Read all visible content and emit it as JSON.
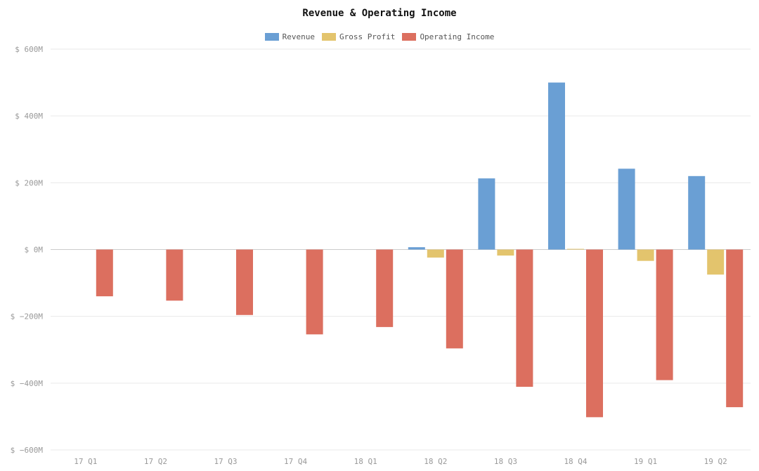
{
  "chart_data": {
    "type": "bar",
    "title": "Revenue & Operating Income",
    "xlabel": "",
    "ylabel": "",
    "categories": [
      "17 Q1",
      "17 Q2",
      "17 Q3",
      "17 Q4",
      "18 Q1",
      "18 Q2",
      "18 Q3",
      "18 Q4",
      "19 Q1",
      "19 Q2"
    ],
    "series": [
      {
        "name": "Revenue",
        "color": "#6a9fd4",
        "values": [
          0,
          0,
          0,
          0,
          0,
          7,
          213,
          500,
          242,
          220
        ]
      },
      {
        "name": "Gross Profit",
        "color": "#e3c46d",
        "values": [
          0,
          0,
          0,
          0,
          0,
          -24,
          -18,
          2,
          -34,
          -75
        ]
      },
      {
        "name": "Operating Income",
        "color": "#dc6f5f",
        "values": [
          -140,
          -153,
          -196,
          -254,
          -232,
          -296,
          -411,
          -502,
          -391,
          -472
        ]
      }
    ],
    "ylim": [
      -600,
      600
    ],
    "yticks": [
      -600,
      -400,
      -200,
      0,
      200,
      400,
      600
    ],
    "ytick_labels": [
      "$ −600M",
      "$ −400M",
      "$ −200M",
      "$ 0M",
      "$ 200M",
      "$ 400M",
      "$ 600M"
    ],
    "grid": true,
    "legend_position": "top-center"
  }
}
